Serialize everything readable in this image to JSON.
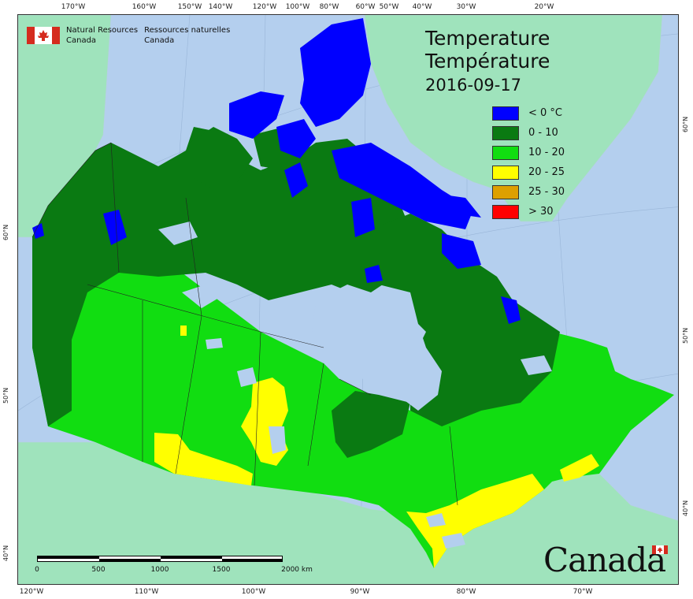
{
  "agency": {
    "name_en_line1": "Natural Resources",
    "name_en_line2": "Canada",
    "name_fr_line1": "Ressources naturelles",
    "name_fr_line2": "Canada"
  },
  "title": {
    "en": "Temperature",
    "fr": "Température",
    "date": "2016-09-17"
  },
  "legend": [
    {
      "label": "< 0 °C",
      "color": "#0000ff"
    },
    {
      "label": "0 - 10",
      "color": "#0a7a12"
    },
    {
      "label": "10 - 20",
      "color": "#11dd11"
    },
    {
      "label": "20 - 25",
      "color": "#ffff00"
    },
    {
      "label": "25 - 30",
      "color": "#dda000"
    },
    {
      "label": "> 30",
      "color": "#ff0000"
    }
  ],
  "graticule": {
    "top": [
      "170°W",
      "160°W",
      "150°W",
      "140°W",
      "120°W",
      "100°W",
      "80°W",
      "60°W",
      "50°W",
      "40°W",
      "30°W",
      "20°W"
    ],
    "bottom": [
      "120°W",
      "110°W",
      "100°W",
      "90°W",
      "80°W",
      "70°W"
    ],
    "left": [
      "60°N",
      "50°N",
      "40°N"
    ],
    "right": [
      "60°N",
      "50°N",
      "40°N"
    ]
  },
  "scale": {
    "labels": [
      "0",
      "500",
      "1000",
      "1500",
      "2000 km"
    ]
  },
  "wordmark": "Canada",
  "colors": {
    "ocean": "#b4cfee",
    "foreign_land": "#9fe3bc",
    "lakes": "#b4cfee"
  }
}
